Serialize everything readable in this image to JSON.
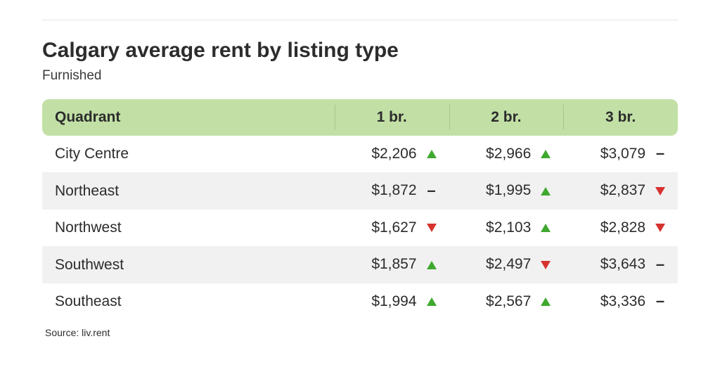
{
  "title": "Calgary average rent by listing type",
  "subtitle": "Furnished",
  "source_label": "Source: liv.rent",
  "colors": {
    "header_bg": "#c2e0a6",
    "stripe_bg": "#f1f1f1",
    "text": "#2c2c2c",
    "up": "#3fa82f",
    "down": "#d6322f",
    "rule": "#e5e5e5"
  },
  "table": {
    "type": "table",
    "columns": [
      "Quadrant",
      "1 br.",
      "2 br.",
      "3 br."
    ],
    "column_widths_pct": [
      46,
      18,
      18,
      18
    ],
    "header_fontsize_pt": 16,
    "body_fontsize_pt": 16,
    "rows": [
      {
        "quadrant": "City Centre",
        "stripe": false,
        "cells": [
          {
            "value": "$2,206",
            "trend": "up"
          },
          {
            "value": "$2,966",
            "trend": "up"
          },
          {
            "value": "$3,079",
            "trend": "flat"
          }
        ]
      },
      {
        "quadrant": "Northeast",
        "stripe": true,
        "cells": [
          {
            "value": "$1,872",
            "trend": "flat"
          },
          {
            "value": "$1,995",
            "trend": "up"
          },
          {
            "value": "$2,837",
            "trend": "down"
          }
        ]
      },
      {
        "quadrant": "Northwest",
        "stripe": false,
        "cells": [
          {
            "value": "$1,627",
            "trend": "down"
          },
          {
            "value": "$2,103",
            "trend": "up"
          },
          {
            "value": "$2,828",
            "trend": "down"
          }
        ]
      },
      {
        "quadrant": "Southwest",
        "stripe": true,
        "cells": [
          {
            "value": "$1,857",
            "trend": "up"
          },
          {
            "value": "$2,497",
            "trend": "down"
          },
          {
            "value": "$3,643",
            "trend": "flat"
          }
        ]
      },
      {
        "quadrant": "Southeast",
        "stripe": false,
        "cells": [
          {
            "value": "$1,994",
            "trend": "up"
          },
          {
            "value": "$2,567",
            "trend": "up"
          },
          {
            "value": "$3,336",
            "trend": "flat"
          }
        ]
      }
    ]
  }
}
